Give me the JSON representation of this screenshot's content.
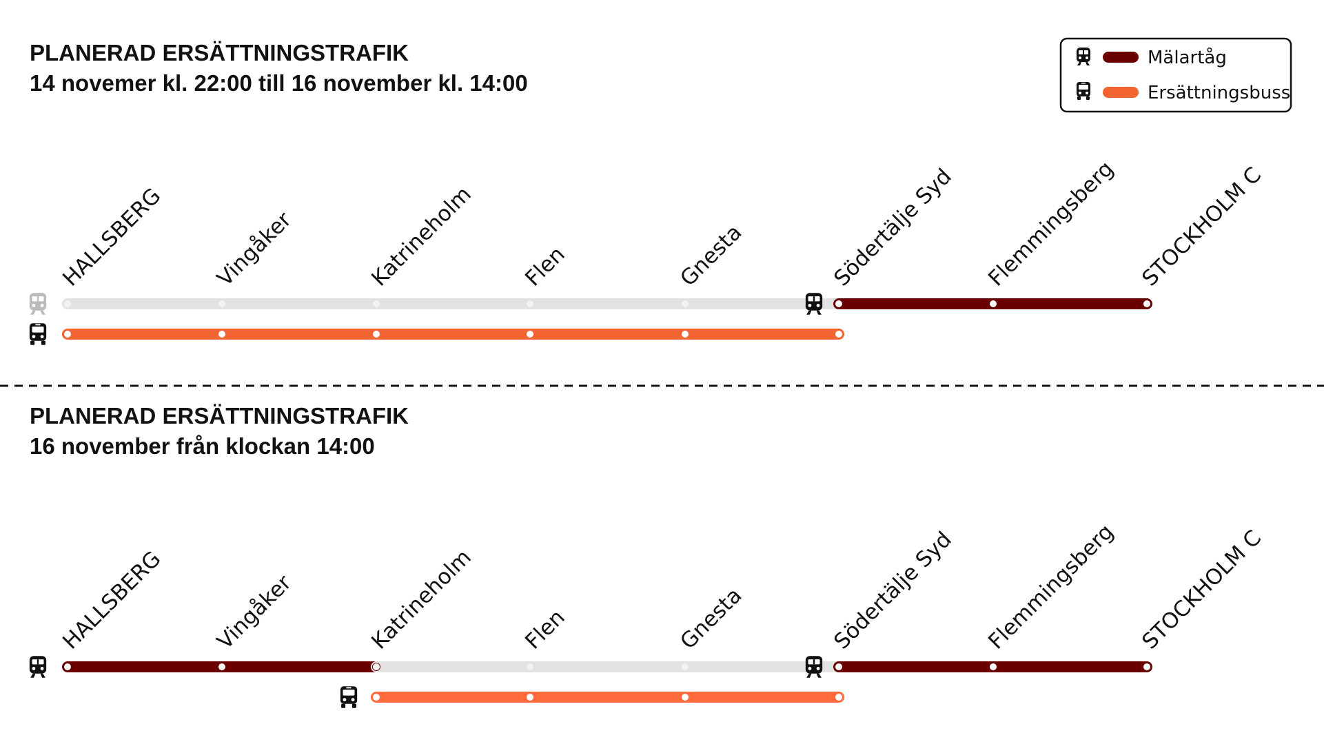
{
  "legend": {
    "items": [
      {
        "label": "Mälartåg"
      },
      {
        "label": "Ersättningsbuss"
      }
    ]
  },
  "sections": [
    {
      "title": "PLANERAD ERSÄTTNINGSTRAFIK",
      "subtitle": "14 novemer kl. 22:00 till 16 november kl. 14:00",
      "stations": [
        "HALLSBERG",
        "Vingåker",
        "Katrineholm",
        "Flen",
        "Gnesta",
        "Södertälje Syd",
        "Flemmingsberg",
        "STOCKHOLM C"
      ]
    },
    {
      "title": "PLANERAD ERSÄTTNINGSTRAFIK",
      "subtitle": "16 november från klockan 14:00",
      "stations": [
        "HALLSBERG",
        "Vingåker",
        "Katrineholm",
        "Flen",
        "Gnesta",
        "Södertälje Syd",
        "Flemmingsberg",
        "STOCKHOLM C"
      ]
    }
  ]
}
